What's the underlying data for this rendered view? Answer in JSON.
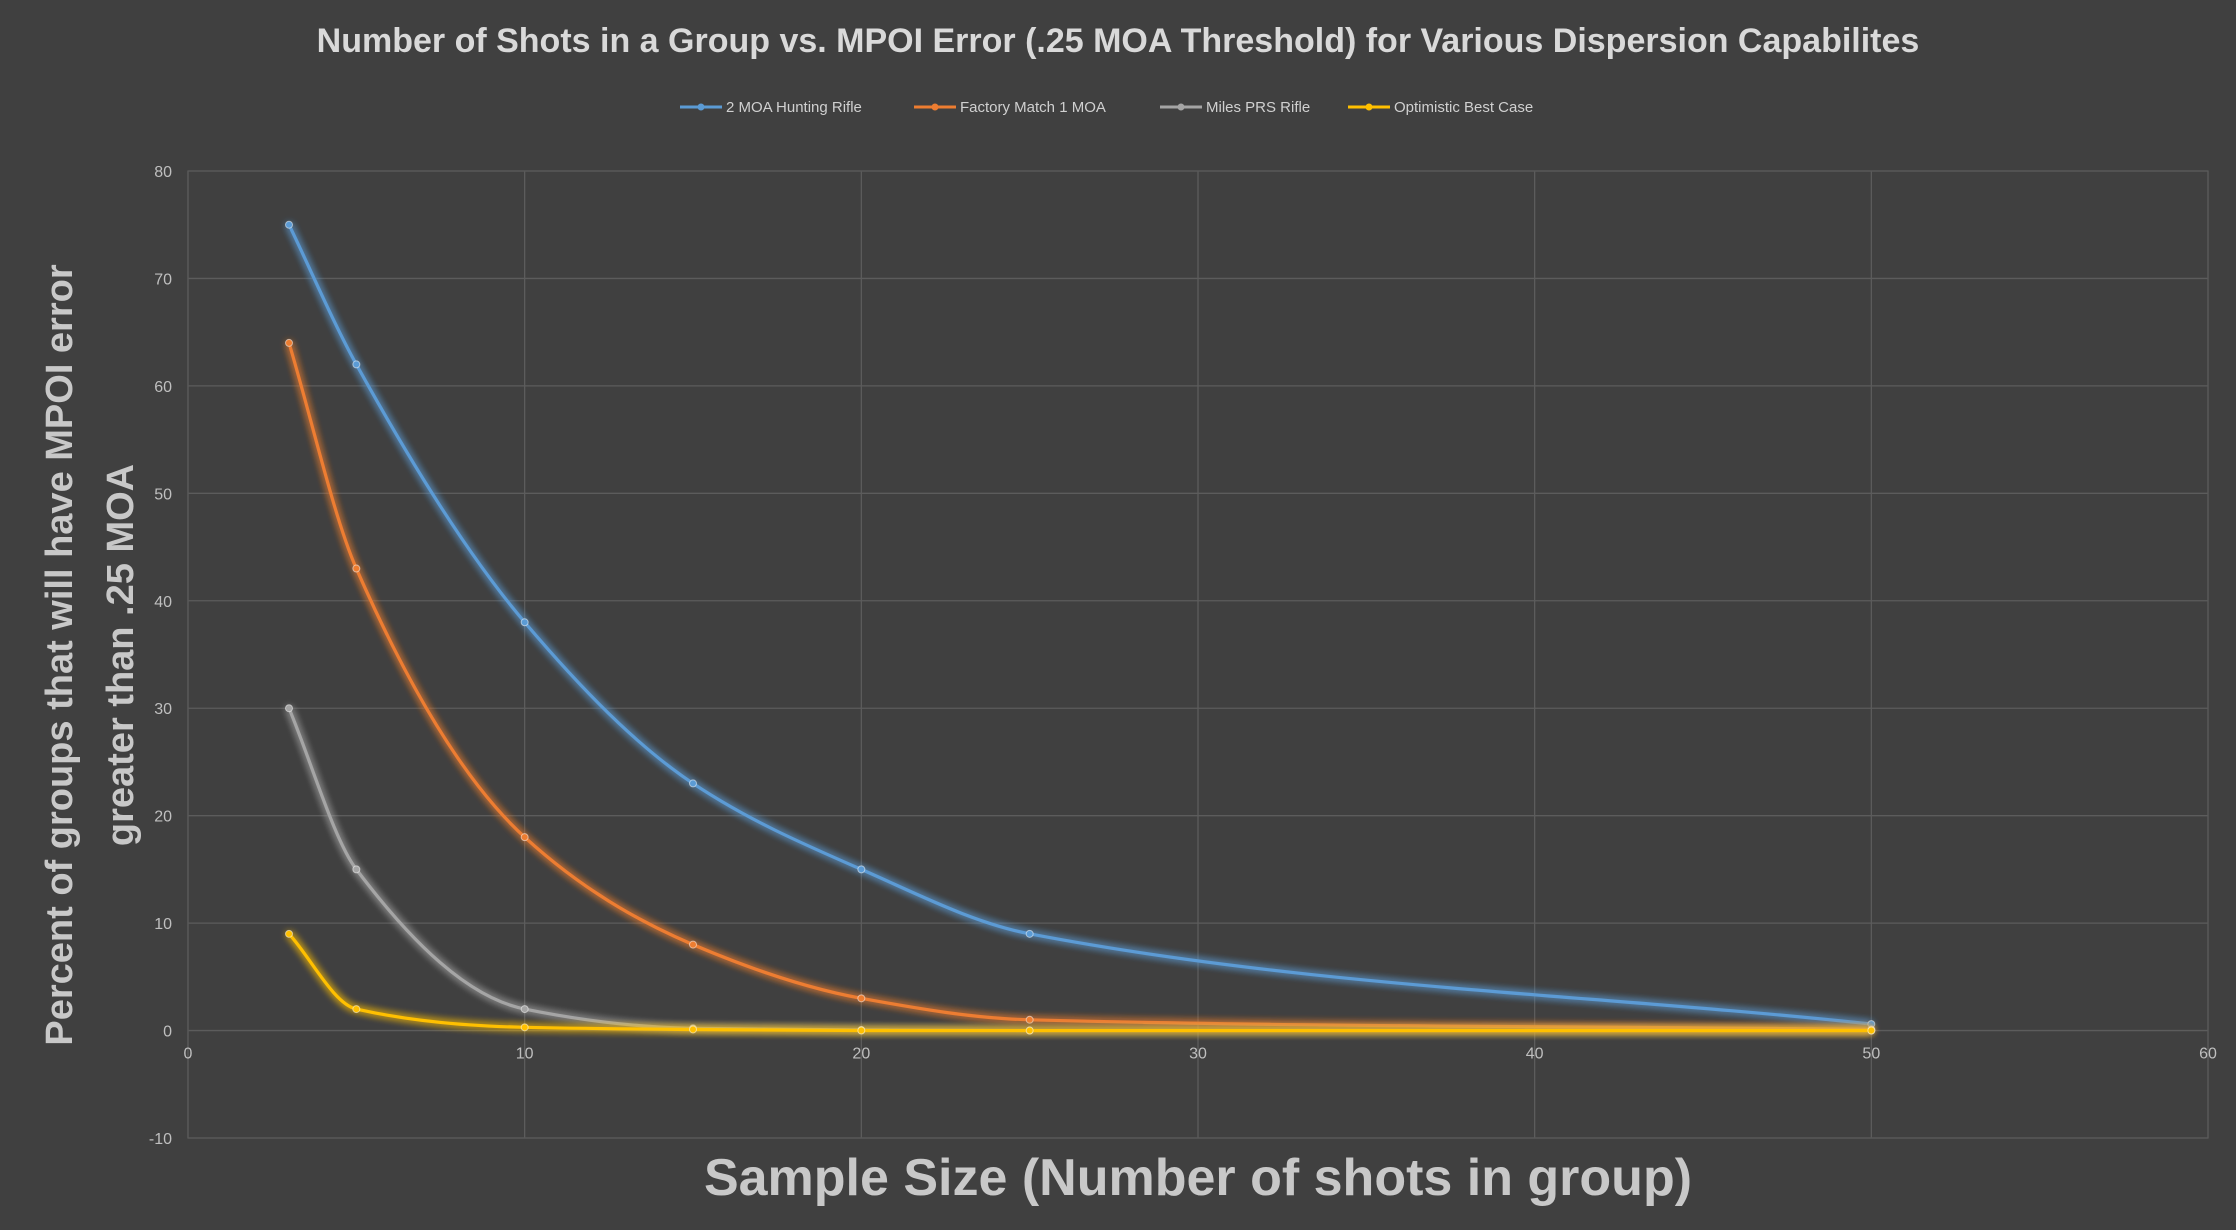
{
  "chart_data": {
    "type": "line",
    "title": "Number of Shots in a Group vs. MPOI Error (.25 MOA Threshold) for Various Dispersion Capabilites",
    "xlabel": "Sample Size (Number of shots in group)",
    "ylabel_lines": [
      "Percent of groups that will have MPOI error",
      "greater than .25 MOA"
    ],
    "xlim": [
      0,
      60
    ],
    "ylim": [
      -10,
      80
    ],
    "xticks": [
      0,
      10,
      20,
      30,
      40,
      50,
      60
    ],
    "yticks": [
      -10,
      0,
      10,
      20,
      30,
      40,
      50,
      60,
      70,
      80
    ],
    "grid": true,
    "legend_position": "top",
    "smooth": true,
    "series": [
      {
        "name": "2 MOA Hunting Rifle",
        "color": "#5b9bd5",
        "x": [
          3,
          5,
          10,
          15,
          20,
          25,
          50
        ],
        "y": [
          75,
          62,
          38,
          23,
          15,
          9,
          0.6
        ]
      },
      {
        "name": "Factory Match 1 MOA",
        "color": "#ed7d31",
        "x": [
          3,
          5,
          10,
          15,
          20,
          25,
          50
        ],
        "y": [
          64,
          43,
          18,
          8,
          3,
          1,
          0.1
        ]
      },
      {
        "name": "Miles PRS Rifle",
        "color": "#a5a5a5",
        "x": [
          3,
          5,
          10,
          15,
          20,
          25,
          50
        ],
        "y": [
          30,
          15,
          2,
          0.2,
          0.05,
          0,
          0
        ]
      },
      {
        "name": "Optimistic Best Case",
        "color": "#ffc000",
        "x": [
          3,
          5,
          10,
          15,
          20,
          25,
          50
        ],
        "y": [
          9,
          2,
          0.3,
          0.1,
          0,
          0,
          0
        ]
      }
    ]
  }
}
